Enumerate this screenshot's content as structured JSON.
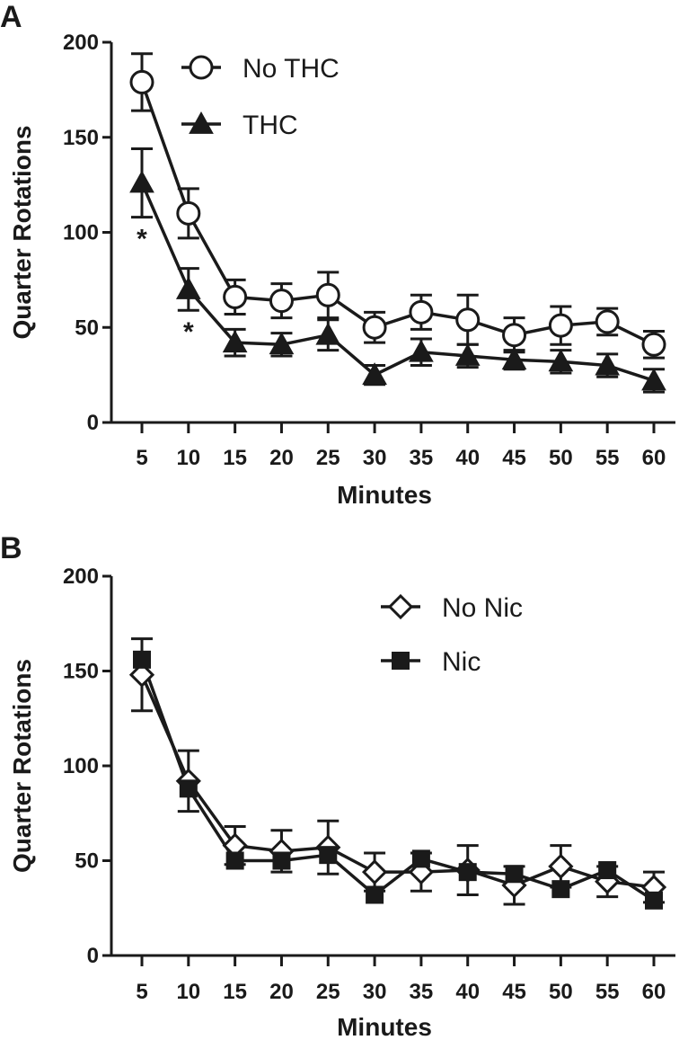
{
  "chart_data": [
    {
      "panel": "A",
      "type": "line",
      "xlabel": "Minutes",
      "ylabel": "Quarter Rotations",
      "ylim": [
        0,
        200
      ],
      "yticks": [
        0,
        50,
        100,
        150,
        200
      ],
      "x": [
        5,
        10,
        15,
        20,
        25,
        30,
        35,
        40,
        45,
        50,
        55,
        60
      ],
      "legend_position": "top-right",
      "series": [
        {
          "name": "No THC",
          "marker": "open-circle",
          "values": [
            179,
            110,
            66,
            64,
            67,
            50,
            58,
            54,
            46,
            51,
            53,
            41
          ],
          "errors": [
            15,
            13,
            9,
            9,
            12,
            8,
            9,
            13,
            9,
            10,
            7,
            7
          ]
        },
        {
          "name": "THC",
          "marker": "filled-triangle",
          "values": [
            126,
            70,
            42,
            41,
            46,
            25,
            37,
            35,
            33,
            32,
            30,
            22
          ],
          "errors": [
            18,
            11,
            7,
            6,
            8,
            5,
            7,
            6,
            5,
            6,
            6,
            6
          ]
        }
      ],
      "annotations": [
        {
          "text": "*",
          "x": 5
        },
        {
          "text": "*",
          "x": 10
        }
      ]
    },
    {
      "panel": "B",
      "type": "line",
      "xlabel": "Minutes",
      "ylabel": "Quarter Rotations",
      "ylim": [
        0,
        200
      ],
      "yticks": [
        0,
        50,
        100,
        150,
        200
      ],
      "x": [
        5,
        10,
        15,
        20,
        25,
        30,
        35,
        40,
        45,
        50,
        55,
        60
      ],
      "legend_position": "top-right",
      "series": [
        {
          "name": "No Nic",
          "marker": "open-diamond",
          "values": [
            148,
            92,
            58,
            55,
            57,
            44,
            44,
            45,
            37,
            47,
            39,
            36
          ],
          "errors": [
            19,
            16,
            10,
            11,
            14,
            10,
            10,
            13,
            10,
            11,
            8,
            8
          ]
        },
        {
          "name": "Nic",
          "marker": "filled-square",
          "values": [
            156,
            88,
            50,
            50,
            53,
            32,
            51,
            44,
            43,
            35,
            45,
            29
          ]
        }
      ]
    }
  ]
}
